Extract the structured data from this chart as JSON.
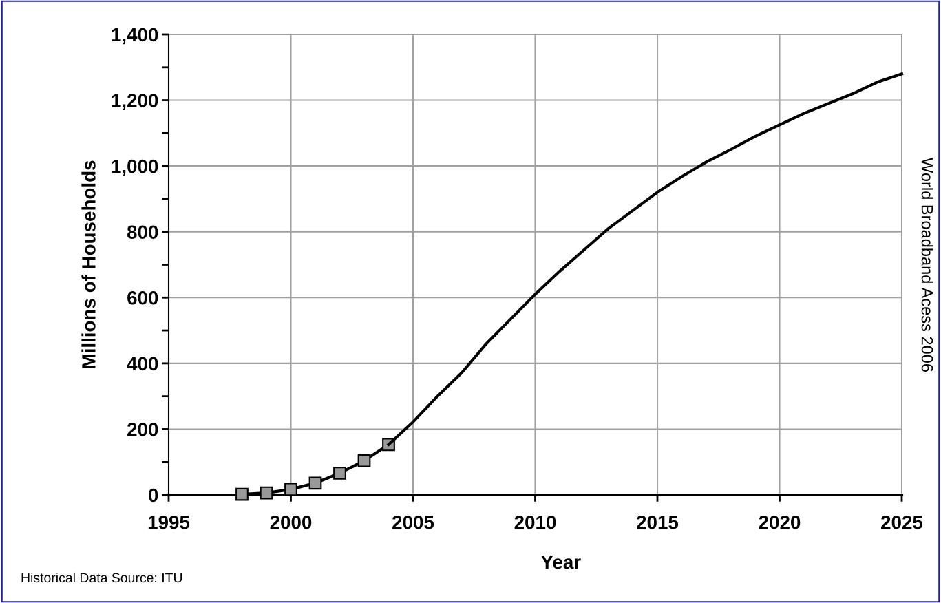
{
  "chart_data": {
    "type": "line",
    "xlabel": "Year",
    "ylabel": "Millions of Households",
    "marker": "square",
    "annotations": [
      "World Broadband Acess 2006",
      "Historical Data Source: ITU"
    ],
    "series": [
      {
        "color": "#000000",
        "x": [
          1998,
          1999,
          2000,
          2001,
          2002,
          2003,
          2004
        ],
        "values": [
          2,
          6,
          17,
          36,
          66,
          104,
          153
        ]
      },
      {
        "color": "#000000",
        "marker": "none",
        "x": [
          2004,
          2005,
          2006,
          2007,
          2008,
          2009,
          2010,
          2011,
          2012,
          2013,
          2014,
          2015,
          2016,
          2017,
          2018,
          2019,
          2020,
          2021,
          2022,
          2023,
          2024,
          2025
        ],
        "values": [
          153,
          222,
          300,
          372,
          460,
          535,
          610,
          680,
          745,
          810,
          865,
          920,
          968,
          1012,
          1050,
          1090,
          1125,
          1160,
          1190,
          1220,
          1255,
          1280
        ]
      }
    ],
    "xlim": [
      1995,
      2025
    ],
    "ylim": [
      0,
      1400
    ],
    "xticks": [
      1995,
      2000,
      2005,
      2010,
      2015,
      2020,
      2025
    ],
    "yticks": [
      {
        "value": 0,
        "label": "0"
      },
      {
        "value": 100,
        "label": null
      },
      {
        "value": 200,
        "label": "200"
      },
      {
        "value": 300,
        "label": null
      },
      {
        "value": 400,
        "label": "400"
      },
      {
        "value": 500,
        "label": null
      },
      {
        "value": 600,
        "label": "600"
      },
      {
        "value": 700,
        "label": null
      },
      {
        "value": 800,
        "label": "800"
      },
      {
        "value": 900,
        "label": null
      },
      {
        "value": 1000,
        "label": "1,000"
      },
      {
        "value": 1100,
        "label": null
      },
      {
        "value": 1200,
        "label": "1,200"
      },
      {
        "value": 1300,
        "label": null
      },
      {
        "value": 1400,
        "label": "1,400"
      }
    ],
    "grid": true
  }
}
